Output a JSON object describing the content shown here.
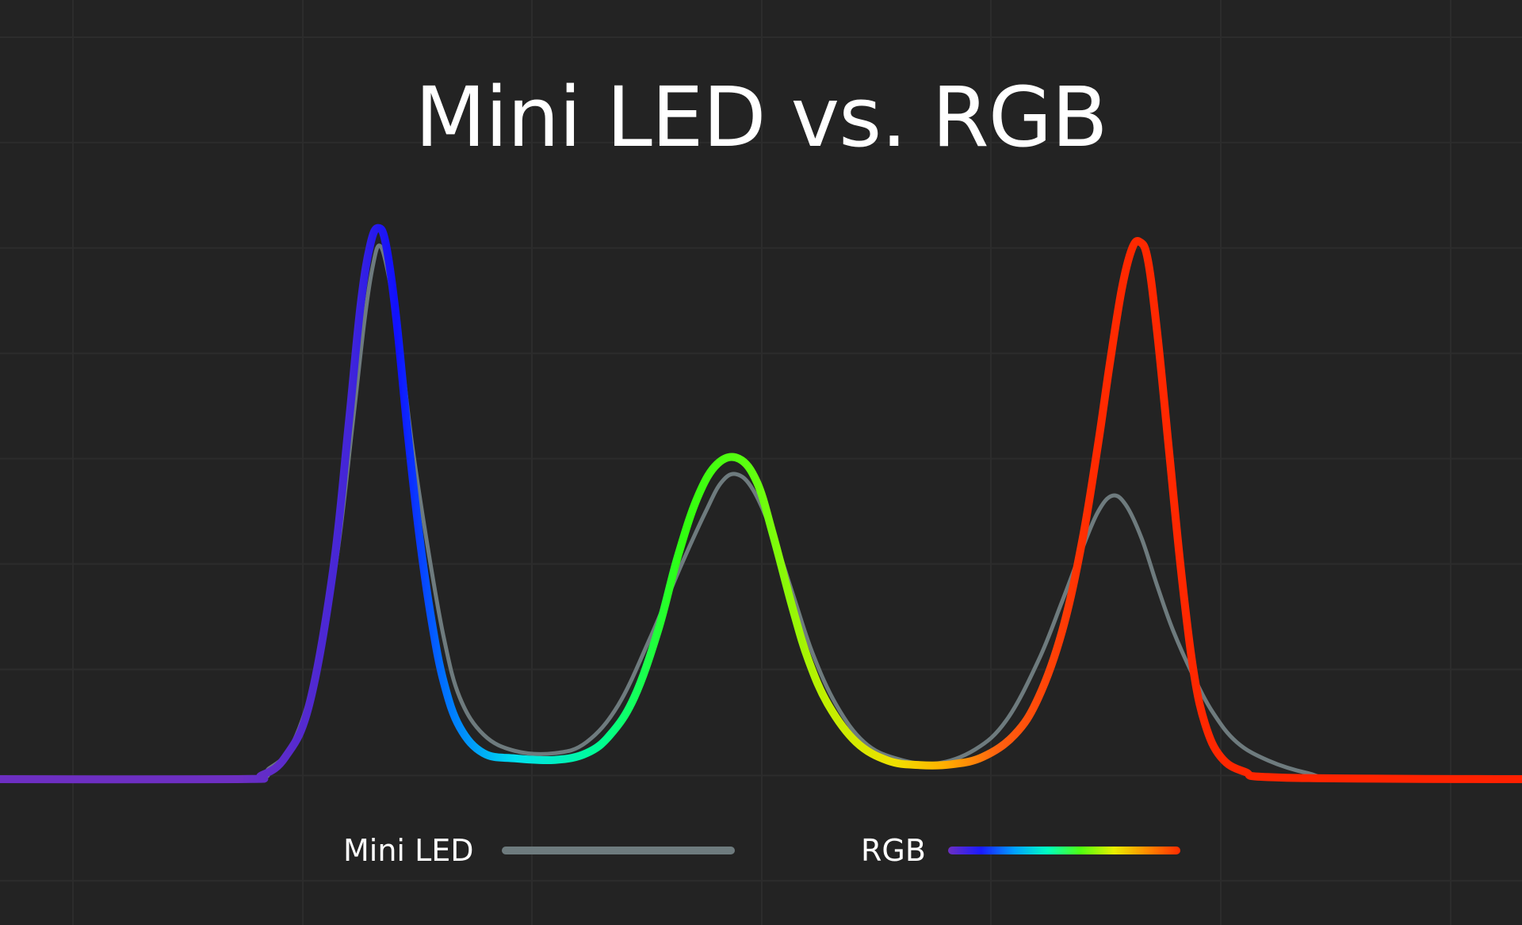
{
  "title": "Mini LED vs. RGB",
  "legend": {
    "items": [
      {
        "label": "Mini LED",
        "color": "#6e7b7e"
      },
      {
        "label": "RGB",
        "gradient": [
          "#6d2fc2",
          "#1a1aff",
          "#00a0ff",
          "#00ffc0",
          "#50ff10",
          "#e8ef00",
          "#ff8a00",
          "#ff2a00"
        ]
      }
    ]
  },
  "colors": {
    "background": "#232323",
    "grid": "#2c2c2c",
    "mini_led": "#6e7b7e",
    "rgb_gradient_stops": [
      {
        "x": 0,
        "c": "#6d2fc2"
      },
      {
        "x": 300,
        "c": "#6d2fc2"
      },
      {
        "x": 440,
        "c": "#4326d8"
      },
      {
        "x": 500,
        "c": "#1010ff"
      },
      {
        "x": 560,
        "c": "#0070ff"
      },
      {
        "x": 650,
        "c": "#00e0f0"
      },
      {
        "x": 760,
        "c": "#00ff90"
      },
      {
        "x": 860,
        "c": "#30ff10"
      },
      {
        "x": 950,
        "c": "#60ff10"
      },
      {
        "x": 1040,
        "c": "#c0f000"
      },
      {
        "x": 1130,
        "c": "#f0e000"
      },
      {
        "x": 1190,
        "c": "#ffb000"
      },
      {
        "x": 1260,
        "c": "#ff6010"
      },
      {
        "x": 1380,
        "c": "#ff2a00"
      },
      {
        "x": 1920,
        "c": "#ff2000"
      }
    ]
  },
  "chart_data": {
    "type": "line",
    "title": "Mini LED vs. RGB",
    "xlabel": "",
    "ylabel": "",
    "x_range": [
      0,
      1920
    ],
    "ylim": [
      0,
      100
    ],
    "grid": true,
    "grid_x": [
      92,
      382,
      671,
      961,
      1250,
      1540,
      1830
    ],
    "grid_y_values": [
      100,
      85.8,
      71.6,
      57.4,
      43.2,
      29.0,
      14.8,
      0.5,
      -13.7
    ],
    "legend_position": "bottom",
    "series": [
      {
        "name": "Mini LED",
        "color": "#6e7b7e",
        "points": [
          [
            0,
            0
          ],
          [
            300,
            0
          ],
          [
            340,
            1.5
          ],
          [
            370,
            5
          ],
          [
            400,
            15
          ],
          [
            425,
            30
          ],
          [
            445,
            48
          ],
          [
            460,
            62
          ],
          [
            470,
            69
          ],
          [
            479,
            71.9
          ],
          [
            490,
            68
          ],
          [
            505,
            58
          ],
          [
            520,
            45
          ],
          [
            540,
            31
          ],
          [
            560,
            19
          ],
          [
            580,
            11
          ],
          [
            610,
            6
          ],
          [
            650,
            3.8
          ],
          [
            700,
            3.5
          ],
          [
            740,
            5
          ],
          [
            780,
            10
          ],
          [
            820,
            19
          ],
          [
            860,
            29
          ],
          [
            890,
            36
          ],
          [
            910,
            40
          ],
          [
            929,
            41.1
          ],
          [
            950,
            39
          ],
          [
            975,
            33
          ],
          [
            1000,
            25
          ],
          [
            1025,
            17
          ],
          [
            1055,
            10
          ],
          [
            1090,
            5
          ],
          [
            1130,
            2.8
          ],
          [
            1180,
            2.1
          ],
          [
            1230,
            4
          ],
          [
            1270,
            8
          ],
          [
            1310,
            16
          ],
          [
            1340,
            24
          ],
          [
            1365,
            31
          ],
          [
            1385,
            36
          ],
          [
            1403,
            38.2
          ],
          [
            1420,
            37
          ],
          [
            1440,
            32.5
          ],
          [
            1460,
            26
          ],
          [
            1480,
            20
          ],
          [
            1505,
            14
          ],
          [
            1530,
            9
          ],
          [
            1560,
            5
          ],
          [
            1600,
            2.5
          ],
          [
            1650,
            0.8
          ],
          [
            1700,
            0.1
          ],
          [
            1920,
            0
          ]
        ]
      },
      {
        "name": "RGB",
        "color": "gradient",
        "points": [
          [
            0,
            0
          ],
          [
            300,
            0
          ],
          [
            330,
            0.5
          ],
          [
            360,
            3
          ],
          [
            390,
            10
          ],
          [
            420,
            28
          ],
          [
            440,
            48
          ],
          [
            455,
            64
          ],
          [
            467,
            72
          ],
          [
            477,
            74.3
          ],
          [
            487,
            72
          ],
          [
            500,
            62
          ],
          [
            515,
            46
          ],
          [
            530,
            32
          ],
          [
            545,
            21
          ],
          [
            560,
            13
          ],
          [
            580,
            7
          ],
          [
            610,
            3.5
          ],
          [
            650,
            2.8
          ],
          [
            700,
            2.6
          ],
          [
            740,
            3.5
          ],
          [
            770,
            6
          ],
          [
            800,
            11
          ],
          [
            830,
            20
          ],
          [
            855,
            30
          ],
          [
            880,
            38
          ],
          [
            905,
            42.5
          ],
          [
            932,
            43.2
          ],
          [
            955,
            40
          ],
          [
            975,
            33
          ],
          [
            1000,
            23
          ],
          [
            1020,
            16
          ],
          [
            1045,
            10
          ],
          [
            1080,
            5
          ],
          [
            1120,
            2.5
          ],
          [
            1160,
            1.9
          ],
          [
            1200,
            2
          ],
          [
            1240,
            3
          ],
          [
            1280,
            6
          ],
          [
            1310,
            11
          ],
          [
            1340,
            20
          ],
          [
            1365,
            32
          ],
          [
            1385,
            45
          ],
          [
            1400,
            56
          ],
          [
            1415,
            66
          ],
          [
            1428,
            71.5
          ],
          [
            1438,
            72.4
          ],
          [
            1448,
            70
          ],
          [
            1460,
            60
          ],
          [
            1475,
            44
          ],
          [
            1490,
            28
          ],
          [
            1505,
            15
          ],
          [
            1520,
            7.5
          ],
          [
            1540,
            3
          ],
          [
            1570,
            1
          ],
          [
            1620,
            0.2
          ],
          [
            1920,
            0
          ]
        ]
      }
    ],
    "peaks": {
      "RGB": [
        {
          "x": 477,
          "y": 74.3
        },
        {
          "x": 932,
          "y": 43.2
        },
        {
          "x": 1438,
          "y": 72.4
        }
      ],
      "Mini LED": [
        {
          "x": 479,
          "y": 71.9
        },
        {
          "x": 929,
          "y": 41.1
        },
        {
          "x": 1403,
          "y": 38.2
        }
      ]
    }
  }
}
